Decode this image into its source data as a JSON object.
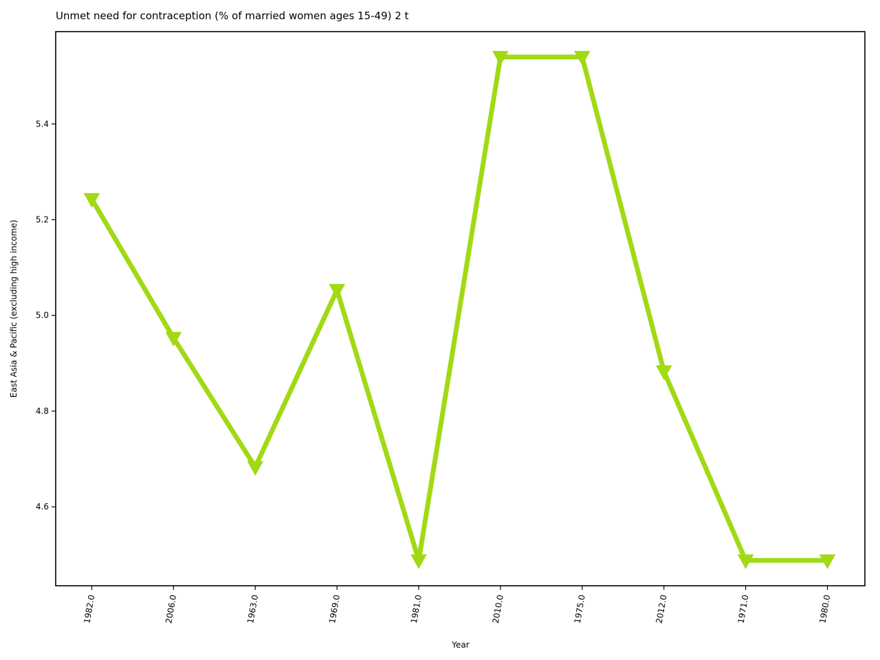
{
  "chart_data": {
    "type": "line",
    "title": "Unmet need for contraception (% of married women ages 15-49) 2 t",
    "xlabel": "Year",
    "ylabel": "East Asia & Pacific (excluding high income)",
    "categories": [
      "1982.0",
      "2006.0",
      "1963.0",
      "1969.0",
      "1981.0",
      "2010.0",
      "1975.0",
      "2012.0",
      "1971.0",
      "1980.0"
    ],
    "series": [
      {
        "values": [
          5.243,
          4.953,
          4.683,
          5.053,
          4.488,
          5.54,
          5.54,
          4.883,
          4.488,
          4.488
        ]
      }
    ],
    "ylim": [
      4.435,
      5.593
    ],
    "yticks": [
      "4.6",
      "4.8",
      "5.0",
      "5.2",
      "5.4"
    ],
    "marker": "triangle-down",
    "color": "#a2d915",
    "grid": false
  }
}
